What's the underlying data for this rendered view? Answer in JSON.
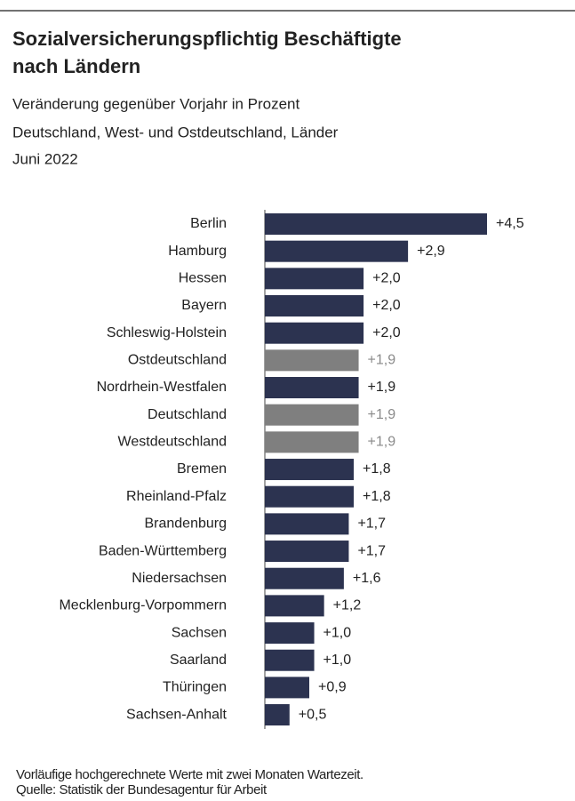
{
  "chart_data": {
    "type": "bar",
    "orientation": "horizontal",
    "title": "Sozialversicherungspflichtig Beschäftigte nach Ländern",
    "subtitle": "Veränderung gegenüber Vorjahr in Prozent",
    "subtitle2": "Deutschland, West- und Ostdeutschland, Länder",
    "subtitle3": "Juni 2022",
    "categories": [
      "Berlin",
      "Hamburg",
      "Hessen",
      "Bayern",
      "Schleswig-Holstein",
      "Ostdeutschland",
      "Nordrhein-Westfalen",
      "Deutschland",
      "Westdeutschland",
      "Bremen",
      "Rheinland-Pfalz",
      "Brandenburg",
      "Baden-Württemberg",
      "Niedersachsen",
      "Mecklenburg-Vorpommern",
      "Sachsen",
      "Saarland",
      "Thüringen",
      "Sachsen-Anhalt"
    ],
    "values": [
      4.5,
      2.9,
      2.0,
      2.0,
      2.0,
      1.9,
      1.9,
      1.9,
      1.9,
      1.8,
      1.8,
      1.7,
      1.7,
      1.6,
      1.2,
      1.0,
      1.0,
      0.9,
      0.5
    ],
    "value_labels": [
      "+4,5",
      "+2,9",
      "+2,0",
      "+2,0",
      "+2,0",
      "+1,9",
      "+1,9",
      "+1,9",
      "+1,9",
      "+1,8",
      "+1,8",
      "+1,7",
      "+1,7",
      "+1,6",
      "+1,2",
      "+1,0",
      "+1,0",
      "+0,9",
      "+0,5"
    ],
    "colors": [
      "#2c3350",
      "#2c3350",
      "#2c3350",
      "#2c3350",
      "#2c3350",
      "#7f7f7f",
      "#2c3350",
      "#7f7f7f",
      "#7f7f7f",
      "#2c3350",
      "#2c3350",
      "#2c3350",
      "#2c3350",
      "#2c3350",
      "#2c3350",
      "#2c3350",
      "#2c3350",
      "#2c3350",
      "#2c3350"
    ],
    "footnote": "Vorläufige hochgerechnete Werte mit zwei Monaten Wartezeit.",
    "source": "Quelle: Statistik der Bundesagentur für Arbeit"
  }
}
